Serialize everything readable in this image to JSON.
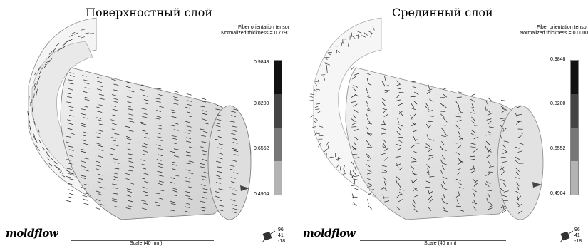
{
  "panels": [
    {
      "title": "Поверхностный слой",
      "info_line1": "Fiber orientation tensor",
      "info_line2": "Normalized thickness = 0.7790",
      "legend": [
        "0.9848",
        "0.8200",
        "0.6552",
        "0.4904"
      ],
      "logo": "moldflow",
      "scale": "Scale (40 mm)",
      "triad": [
        "96",
        "41",
        "-18"
      ]
    },
    {
      "title": "Срединный слой",
      "info_line1": "Fiber orientation tensor",
      "info_line2": "Normalized thickness = 0.0000",
      "legend": [
        "0.9848",
        "0.8200",
        "0.6552",
        "0.4904"
      ],
      "logo": "moldflow",
      "scale": "Scale (40 mm)",
      "triad": [
        "96",
        "41",
        "-18"
      ]
    }
  ],
  "legend_colors": [
    "#111111",
    "#444444",
    "#777777",
    "#b3b3b3"
  ]
}
